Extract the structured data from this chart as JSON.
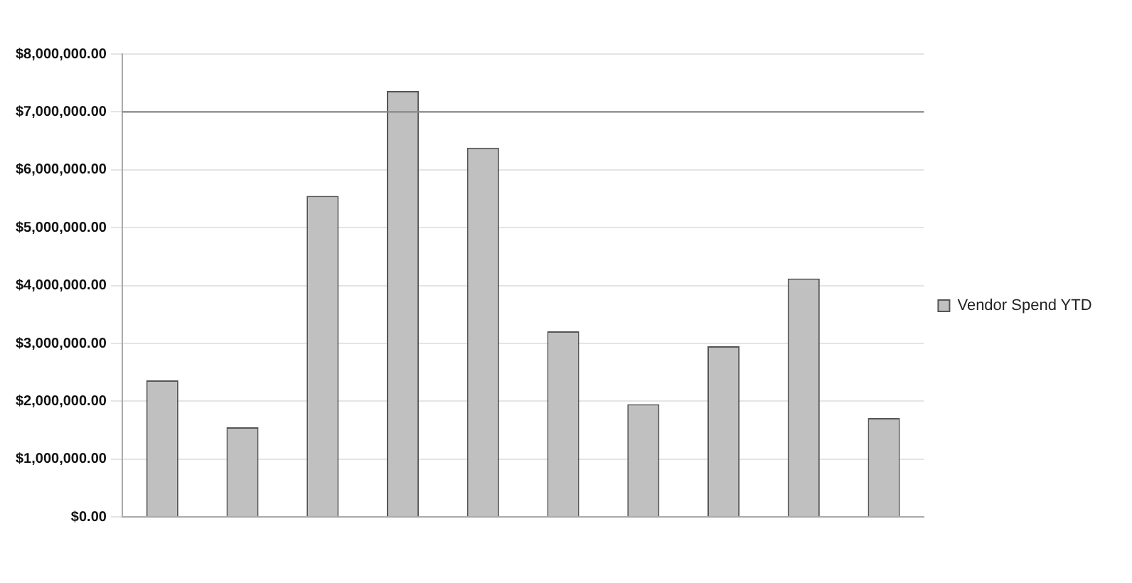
{
  "chart_data": {
    "type": "bar",
    "categories": [
      null,
      null,
      null,
      null,
      null,
      null,
      null,
      null,
      null,
      null
    ],
    "series": [
      {
        "name": "Vendor Spend YTD",
        "color": "#c0c0c0",
        "values": [
          2360000,
          1550000,
          5550000,
          7360000,
          6380000,
          3210000,
          1950000,
          2950000,
          4120000,
          1710000
        ]
      }
    ],
    "ylim": [
      0,
      8000000
    ],
    "yticks": [
      {
        "value": 0,
        "label": "$0.00"
      },
      {
        "value": 1000000,
        "label": "$1,000,000.00"
      },
      {
        "value": 2000000,
        "label": "$2,000,000.00"
      },
      {
        "value": 3000000,
        "label": "$3,000,000.00"
      },
      {
        "value": 4000000,
        "label": "$4,000,000.00"
      },
      {
        "value": 5000000,
        "label": "$5,000,000.00"
      },
      {
        "value": 6000000,
        "label": "$6,000,000.00"
      },
      {
        "value": 7000000,
        "label": "$7,000,000.00"
      },
      {
        "value": 8000000,
        "label": "$8,000,000.00"
      }
    ],
    "ref_lines": [
      {
        "axis": "y",
        "value": 7000000,
        "color": "#888888"
      }
    ],
    "grid": "y",
    "legend": "right"
  }
}
